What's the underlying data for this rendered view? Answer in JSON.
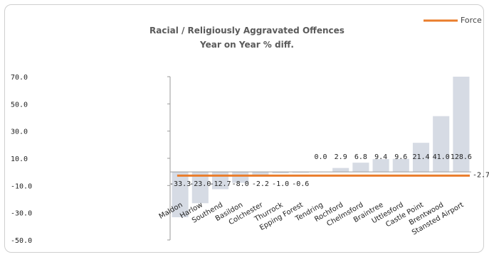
{
  "chart_data": {
    "type": "bar",
    "title": "Racial / Religiously Aggravated Offences",
    "subtitle": "Year on Year % diff.",
    "categories": [
      "Maldon",
      "Harlow",
      "Southend",
      "Basildon",
      "Colchester",
      "Thurrock",
      "Epping Forest",
      "Tendring",
      "Rochford",
      "Chelmsford",
      "Braintree",
      "Uttlesford",
      "Castle Point",
      "Brentwood",
      "Stansted Airport"
    ],
    "values": [
      -33.3,
      -23.0,
      -12.7,
      -8.0,
      -2.2,
      -1.0,
      -0.6,
      0.0,
      2.9,
      6.8,
      9.4,
      9.6,
      21.4,
      41.0,
      128.6
    ],
    "data_labels": [
      "-33.3",
      "-23.0",
      "-12.7",
      "-8.0",
      "-2.2",
      "-1.0",
      "-0.6",
      "0.0",
      "2.9",
      "6.8",
      "9.4",
      "9.6",
      "21.4",
      "41.0",
      "128.6"
    ],
    "yticks": [
      "70.0",
      "50.0",
      "30.0",
      "10.0",
      "-10.0",
      "-30.0",
      "-50.0"
    ],
    "ylim": [
      -50,
      70
    ],
    "reference_line": {
      "name": "Force",
      "value": -2.7,
      "label": "-2.7"
    },
    "legend": {
      "position": "top-right",
      "entries": [
        "Force"
      ]
    },
    "grid": false,
    "bar_color": "#d6dbe4",
    "line_color": "#ea7d2b"
  }
}
